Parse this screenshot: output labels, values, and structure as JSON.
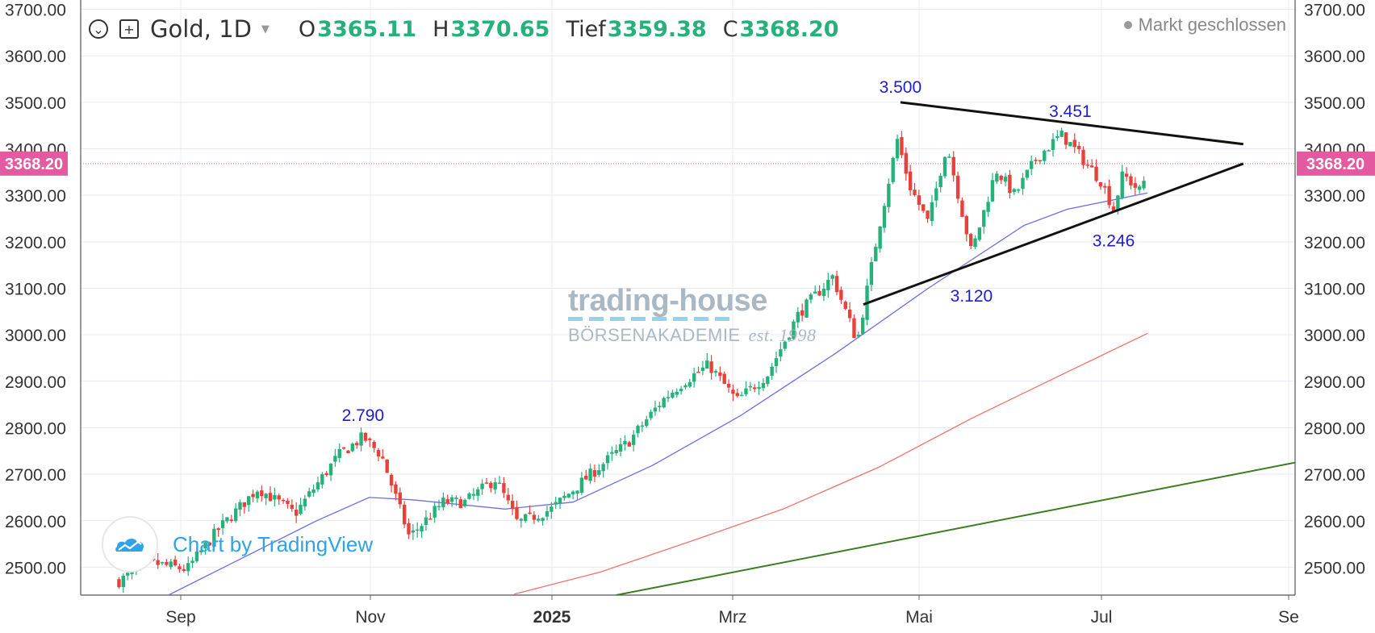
{
  "header": {
    "symbol": "Gold, 1D",
    "open_label": "O",
    "open_value": "3365.11",
    "high_label": "H",
    "high_value": "3370.65",
    "low_label": "Tief",
    "low_value": "3359.38",
    "close_label": "C",
    "close_value": "3368.20",
    "status": "Markt geschlossen"
  },
  "watermark": {
    "brand_top": "trading-house",
    "brand_bottom": "BÖRSENAKADEMIE",
    "est": "est. 1998",
    "tv_text": "Chart by TradingView"
  },
  "colors": {
    "up": "#26b07a",
    "down": "#e8413c",
    "sma_short": "#6a6ee8",
    "sma_long": "#f0736b",
    "trend": "#3b7d1f",
    "price_tag": "#e45aa0",
    "annotation": "#1d1dcf"
  },
  "chart_data": {
    "type": "candlestick",
    "y_ticks": [
      "2500.00",
      "2600.00",
      "2700.00",
      "2800.00",
      "2900.00",
      "3000.00",
      "3100.00",
      "3200.00",
      "3300.00",
      "3400.00",
      "3500.00",
      "3600.00",
      "3700.00"
    ],
    "ylim": [
      2440,
      3720
    ],
    "x_ticks": [
      "Sep",
      "Nov",
      "2025",
      "Mrz",
      "Mai",
      "Jul",
      "Se"
    ],
    "current_price": "3368.20",
    "annotations": [
      {
        "date": "2024-10-30",
        "value": 2790,
        "label": "2.790"
      },
      {
        "date": "2025-04-22",
        "value": 3500,
        "label": "3.500"
      },
      {
        "date": "2025-06-16",
        "value": 3451,
        "label": "3.451"
      },
      {
        "date": "2025-05-15",
        "value": 3120,
        "label": "3.120"
      },
      {
        "date": "2025-06-30",
        "value": 3246,
        "label": "3.246"
      }
    ],
    "triangle": {
      "upper": {
        "from_date": "2025-04-22",
        "from_value": 3500,
        "to_date": "2025-08-11",
        "to_value": 3410
      },
      "lower": {
        "from_date": "2025-04-10",
        "from_value": 3065,
        "to_date": "2025-08-11",
        "to_value": 3368
      }
    },
    "trend_line": {
      "from_date": "2025-01-20",
      "from_value": 2440,
      "to_date": "2025-09-06",
      "to_value": 2737
    },
    "anchors": [
      {
        "date": "2024-08-12",
        "close": 2470
      },
      {
        "date": "2024-08-22",
        "close": 2510
      },
      {
        "date": "2024-09-03",
        "close": 2495
      },
      {
        "date": "2024-09-13",
        "close": 2580
      },
      {
        "date": "2024-09-26",
        "close": 2670
      },
      {
        "date": "2024-10-08",
        "close": 2615
      },
      {
        "date": "2024-10-22",
        "close": 2740
      },
      {
        "date": "2024-10-30",
        "close": 2780
      },
      {
        "date": "2024-11-05",
        "close": 2740
      },
      {
        "date": "2024-11-14",
        "close": 2565
      },
      {
        "date": "2024-11-25",
        "close": 2640
      },
      {
        "date": "2024-12-02",
        "close": 2640
      },
      {
        "date": "2024-12-12",
        "close": 2690
      },
      {
        "date": "2024-12-19",
        "close": 2595
      },
      {
        "date": "2024-12-30",
        "close": 2625
      },
      {
        "date": "2025-01-10",
        "close": 2690
      },
      {
        "date": "2025-01-24",
        "close": 2770
      },
      {
        "date": "2025-02-04",
        "close": 2860
      },
      {
        "date": "2025-02-11",
        "close": 2900
      },
      {
        "date": "2025-02-19",
        "close": 2935
      },
      {
        "date": "2025-02-28",
        "close": 2858
      },
      {
        "date": "2025-03-10",
        "close": 2915
      },
      {
        "date": "2025-03-20",
        "close": 3045
      },
      {
        "date": "2025-03-31",
        "close": 3125
      },
      {
        "date": "2025-04-08",
        "close": 2985
      },
      {
        "date": "2025-04-15",
        "close": 3230
      },
      {
        "date": "2025-04-21",
        "close": 3420
      },
      {
        "date": "2025-04-25",
        "close": 3320
      },
      {
        "date": "2025-05-01",
        "close": 3240
      },
      {
        "date": "2025-05-07",
        "close": 3410
      },
      {
        "date": "2025-05-15",
        "close": 3175
      },
      {
        "date": "2025-05-23",
        "close": 3355
      },
      {
        "date": "2025-05-29",
        "close": 3300
      },
      {
        "date": "2025-06-05",
        "close": 3380
      },
      {
        "date": "2025-06-13",
        "close": 3430
      },
      {
        "date": "2025-06-16",
        "close": 3410
      },
      {
        "date": "2025-06-26",
        "close": 3330
      },
      {
        "date": "2025-06-30",
        "close": 3270
      },
      {
        "date": "2025-07-03",
        "close": 3345
      },
      {
        "date": "2025-07-09",
        "close": 3305
      },
      {
        "date": "2025-07-11",
        "close": 3368
      }
    ],
    "sma_short": [
      {
        "date": "2024-08-28",
        "value": 2440
      },
      {
        "date": "2024-09-15",
        "value": 2500
      },
      {
        "date": "2024-10-15",
        "value": 2600
      },
      {
        "date": "2024-11-01",
        "value": 2650
      },
      {
        "date": "2024-11-15",
        "value": 2645
      },
      {
        "date": "2024-12-15",
        "value": 2625
      },
      {
        "date": "2025-01-06",
        "value": 2640
      },
      {
        "date": "2025-02-01",
        "value": 2720
      },
      {
        "date": "2025-03-01",
        "value": 2825
      },
      {
        "date": "2025-04-01",
        "value": 2960
      },
      {
        "date": "2025-05-01",
        "value": 3100
      },
      {
        "date": "2025-06-01",
        "value": 3235
      },
      {
        "date": "2025-06-15",
        "value": 3270
      },
      {
        "date": "2025-07-11",
        "value": 3305
      }
    ],
    "sma_long": [
      {
        "date": "2024-12-18",
        "value": 2442
      },
      {
        "date": "2025-01-15",
        "value": 2490
      },
      {
        "date": "2025-02-15",
        "value": 2560
      },
      {
        "date": "2025-03-15",
        "value": 2625
      },
      {
        "date": "2025-04-15",
        "value": 2715
      },
      {
        "date": "2025-05-15",
        "value": 2820
      },
      {
        "date": "2025-06-15",
        "value": 2920
      },
      {
        "date": "2025-07-11",
        "value": 3003
      }
    ]
  }
}
